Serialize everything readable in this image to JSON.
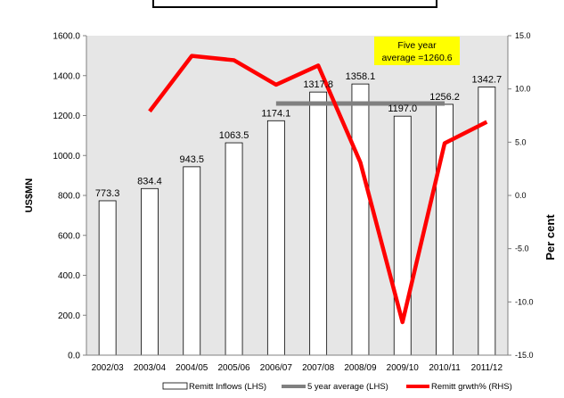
{
  "chart_data": {
    "type": "bar",
    "title": "",
    "categories": [
      "2002/03",
      "2003/04",
      "2004/05",
      "2005/06",
      "2006/07",
      "2007/08",
      "2008/09",
      "2009/10",
      "2010/11",
      "2011/12"
    ],
    "series": [
      {
        "name": "Remitt Inflows (LHS)",
        "type": "bar",
        "axis": "left",
        "values": [
          773.3,
          834.4,
          943.5,
          1063.5,
          1174.1,
          1317.8,
          1358.1,
          1197.0,
          1256.2,
          1342.7
        ],
        "labels": [
          "773.3",
          "834.4",
          "943.5",
          "1063.5",
          "1174.1",
          "1317.8",
          "1358.1",
          "1197.0",
          "1256.2",
          "1342.7"
        ],
        "color": "#ffffff"
      },
      {
        "name": "5 year average (LHS)",
        "type": "line",
        "axis": "left",
        "x_start": "2006/07",
        "x_end": "2010/11",
        "value": 1260.6,
        "color": "#808080"
      },
      {
        "name": "Remitt grwth% (RHS)",
        "type": "line",
        "axis": "right",
        "values": [
          null,
          7.9,
          13.1,
          12.7,
          10.4,
          12.2,
          3.1,
          -11.9,
          4.9,
          6.9
        ],
        "color": "#ff0000"
      }
    ],
    "ylabel": "US$MN",
    "ylabel_right": "Per cent",
    "ylim": [
      0,
      1600
    ],
    "ylim_right": [
      -15,
      15
    ],
    "yticks": [
      "0.0",
      "200.0",
      "400.0",
      "600.0",
      "800.0",
      "1000.0",
      "1200.0",
      "1400.0",
      "1600.0"
    ],
    "yticks_right": [
      "-15.0",
      "-10.0",
      "-5.0",
      "0.0",
      "5.0",
      "10.0",
      "15.0"
    ],
    "annotation": {
      "lines": [
        "Five year",
        "average =1260.6"
      ],
      "background": "#ffff00"
    },
    "grid": false,
    "plot_background": "#e6e6e6",
    "legend_position": "bottom"
  }
}
